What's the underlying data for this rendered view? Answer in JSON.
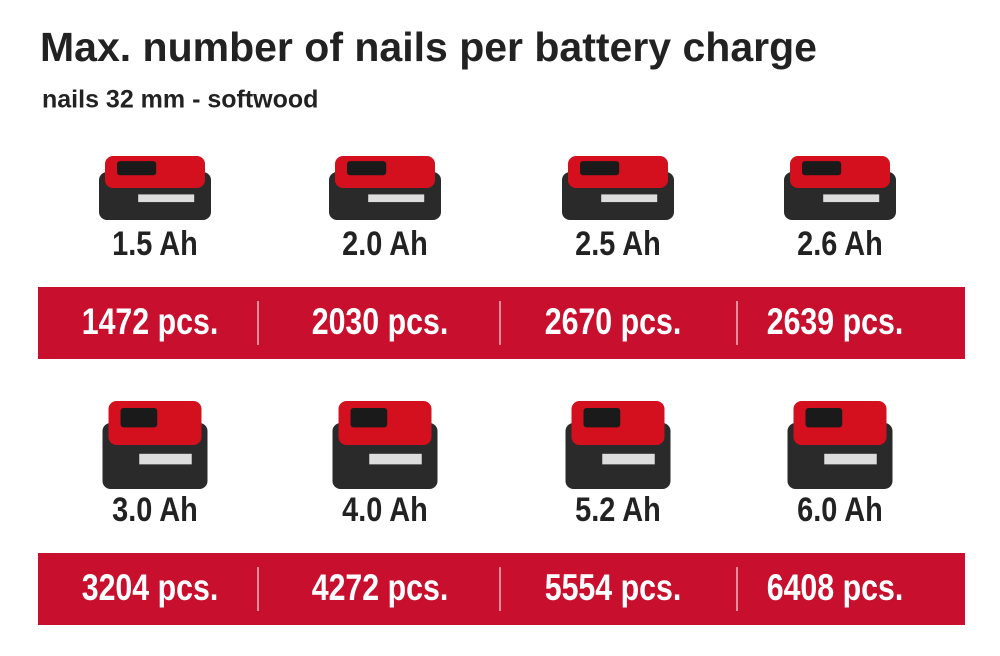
{
  "header": {
    "title": "Max. number of nails per battery charge",
    "subtitle": "nails 32 mm - softwood"
  },
  "rows": [
    {
      "items": [
        {
          "capacity": "1.5 Ah",
          "count": "1472 pcs."
        },
        {
          "capacity": "2.0 Ah",
          "count": "2030 pcs."
        },
        {
          "capacity": "2.5 Ah",
          "count": "2670 pcs."
        },
        {
          "capacity": "2.6 Ah",
          "count": "2639 pcs."
        }
      ]
    },
    {
      "items": [
        {
          "capacity": "3.0 Ah",
          "count": "3204 pcs."
        },
        {
          "capacity": "4.0 Ah",
          "count": "4272 pcs."
        },
        {
          "capacity": "5.2 Ah",
          "count": "5554 pcs."
        },
        {
          "capacity": "6.0 Ah",
          "count": "6408 pcs."
        }
      ]
    }
  ]
}
